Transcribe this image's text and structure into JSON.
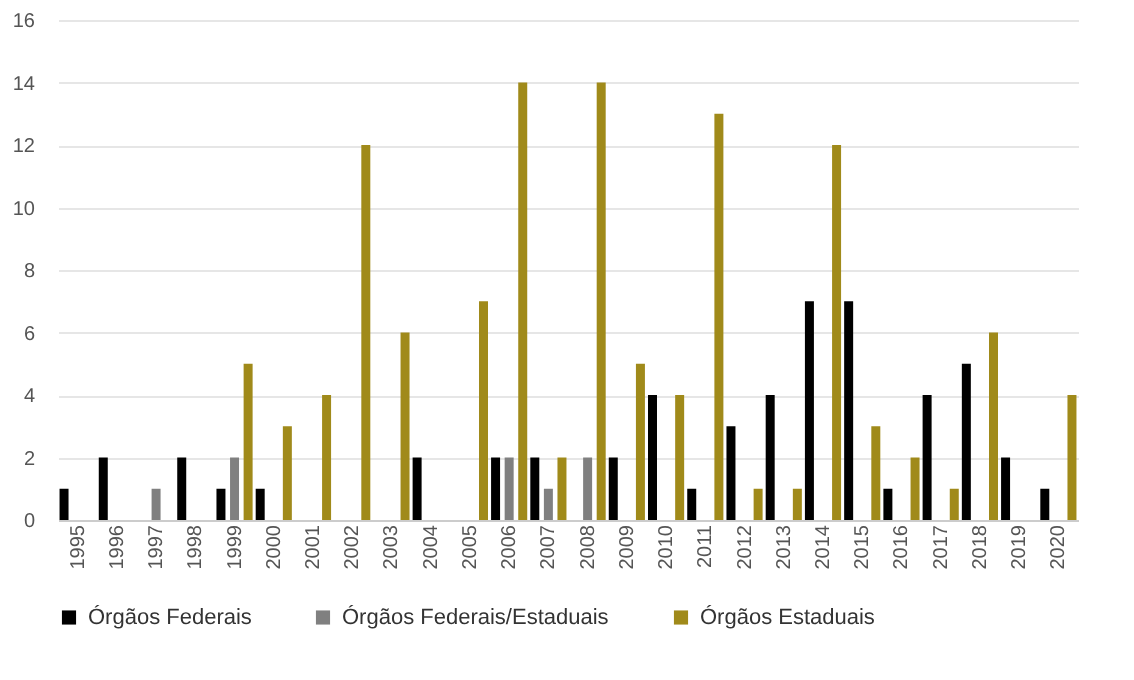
{
  "chart_data": {
    "type": "bar",
    "categories": [
      "1995",
      "1996",
      "1997",
      "1998",
      "1999",
      "2000",
      "2001",
      "2002",
      "2003",
      "2004",
      "2005",
      "2006",
      "2007",
      "2008",
      "2009",
      "2010",
      "2011",
      "2012",
      "2013",
      "2014",
      "2015",
      "2016",
      "2017",
      "2018",
      "2019",
      "2020"
    ],
    "series": [
      {
        "name": "Órgãos Federais",
        "color": "#000000",
        "values": [
          1,
          2,
          null,
          2,
          1,
          1,
          null,
          null,
          null,
          2,
          null,
          2,
          2,
          null,
          2,
          4,
          1,
          3,
          4,
          7,
          7,
          1,
          4,
          5,
          2,
          1
        ]
      },
      {
        "name": "Órgãos Federais/Estaduais",
        "color": "#808080",
        "values": [
          null,
          null,
          1,
          null,
          2,
          null,
          null,
          null,
          null,
          null,
          null,
          2,
          1,
          2,
          null,
          null,
          null,
          null,
          null,
          null,
          null,
          null,
          null,
          null,
          null,
          null
        ]
      },
      {
        "name": "Órgãos Estaduais",
        "color": "#a08a1a",
        "values": [
          null,
          null,
          null,
          null,
          5,
          3,
          4,
          12,
          6,
          null,
          7,
          14,
          2,
          14,
          5,
          4,
          13,
          1,
          1,
          12,
          3,
          2,
          1,
          6,
          null,
          4
        ]
      }
    ],
    "ylim": [
      0,
      16
    ],
    "yticks": [
      0,
      2,
      4,
      6,
      8,
      10,
      12,
      14,
      16
    ],
    "grid": "y",
    "legend": "bottom"
  }
}
